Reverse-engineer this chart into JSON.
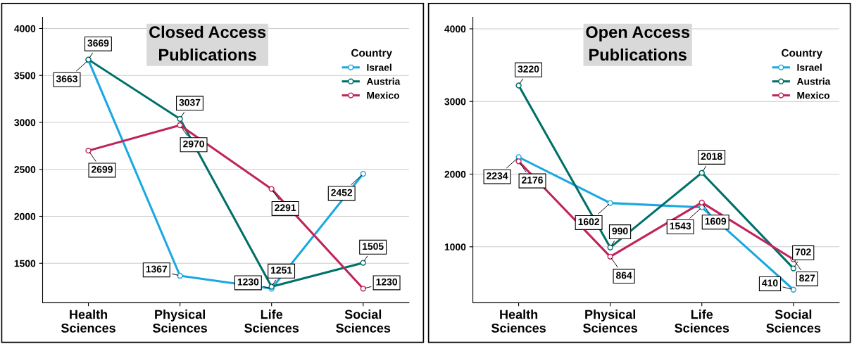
{
  "chart_data": [
    {
      "type": "line",
      "title": "Closed Access\nPublications",
      "legend_title": "Country",
      "legend": "top right",
      "marker": "circle",
      "grid": "y",
      "data_labels": true,
      "categories": [
        "Health\nSciences",
        "Physical\nSciences",
        "Life\nSciences",
        "Social\nSciences"
      ],
      "ylim": [
        1080,
        4120
      ],
      "yticks": [
        1500,
        2000,
        2500,
        3000,
        3500,
        4000
      ],
      "series": [
        {
          "name": "Israel",
          "color": "#1ba8e0",
          "values": [
            3663,
            1367,
            1230,
            2452
          ]
        },
        {
          "name": "Austria",
          "color": "#00706a",
          "values": [
            3669,
            3037,
            1251,
            1505
          ]
        },
        {
          "name": "Mexico",
          "color": "#c0245c",
          "values": [
            2699,
            2970,
            2291,
            1230
          ]
        }
      ]
    },
    {
      "type": "line",
      "title": "Open Access\nPublications",
      "legend_title": "Country",
      "legend": "top right",
      "marker": "circle",
      "grid": "y",
      "data_labels": true,
      "categories": [
        "Health\nSciences",
        "Physical\nSciences",
        "Life\nSciences",
        "Social\nSciences"
      ],
      "ylim": [
        230,
        4160
      ],
      "yticks": [
        1000,
        2000,
        3000,
        4000
      ],
      "series": [
        {
          "name": "Israel",
          "color": "#1ba8e0",
          "values": [
            2234,
            1602,
            1543,
            410
          ]
        },
        {
          "name": "Austria",
          "color": "#00706a",
          "values": [
            3220,
            990,
            2018,
            702
          ]
        },
        {
          "name": "Mexico",
          "color": "#c0245c",
          "values": [
            2176,
            864,
            1609,
            827
          ]
        }
      ]
    }
  ]
}
